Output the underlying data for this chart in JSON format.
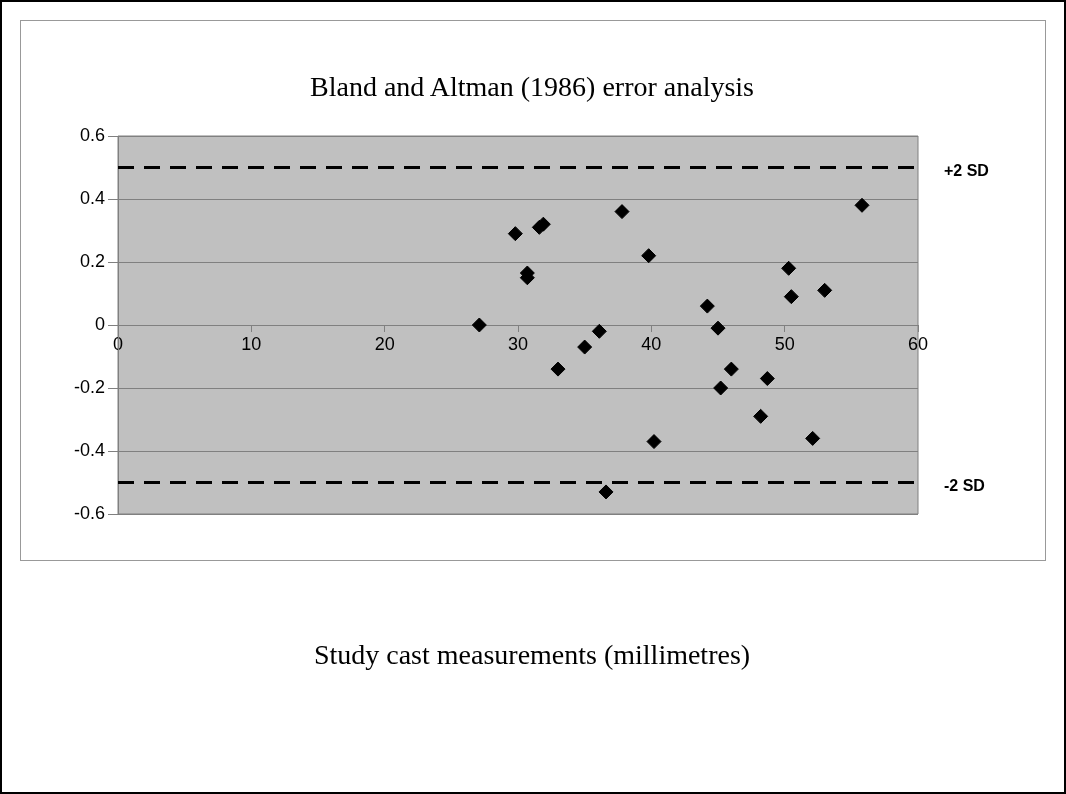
{
  "chart_data": {
    "type": "scatter",
    "title": "Bland and Altman (1986) error analysis",
    "xlabel": "Study cast measurements (millimetres)",
    "x": [
      27.1,
      29.8,
      30.7,
      30.7,
      31.6,
      31.9,
      33.0,
      35.0,
      36.1,
      36.6,
      37.8,
      39.8,
      40.2,
      44.2,
      45.0,
      46.0,
      45.2,
      48.7,
      48.2,
      50.3,
      50.5,
      53.0,
      52.1,
      55.8
    ],
    "series": [
      {
        "color": "#000000",
        "values": [
          0.0,
          0.29,
          0.165,
          0.15,
          0.31,
          0.32,
          -0.14,
          -0.07,
          -0.02,
          -0.53,
          0.36,
          0.22,
          -0.37,
          0.06,
          -0.01,
          -0.14,
          -0.2,
          -0.17,
          -0.29,
          0.18,
          0.09,
          0.11,
          -0.36,
          0.38
        ]
      }
    ],
    "xlim": [
      0,
      60
    ],
    "xticks": [
      0,
      10,
      20,
      30,
      40,
      50,
      60
    ],
    "ylim": [
      -0.6,
      0.6
    ],
    "yticks": [
      -0.6,
      -0.4,
      -0.2,
      0,
      0.2,
      0.4,
      0.6
    ],
    "ref_lines": [
      {
        "axis": "y",
        "value": 0.5,
        "label": "+2 SD",
        "color": "#000000",
        "line_style": "dashed"
      },
      {
        "axis": "y",
        "value": -0.5,
        "label": "-2 SD",
        "color": "#000000",
        "line_style": "dashed"
      }
    ],
    "grid": "y",
    "marker": "diamond",
    "legend": false
  }
}
